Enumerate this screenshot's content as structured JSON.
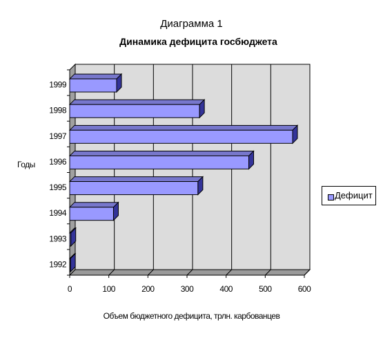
{
  "chart_data": {
    "type": "bar",
    "orientation": "horizontal",
    "title": "Диаграмма 1",
    "subtitle": "Динамика дефицита госбюджета",
    "ylabel": "Годы",
    "xlabel": "Объем бюджетного дефицита, трлн. карбованцев",
    "categories": [
      "1992",
      "1993",
      "1994",
      "1995",
      "1996",
      "1997",
      "1998",
      "1999"
    ],
    "series": [
      {
        "name": "Дефицит",
        "values": [
          2,
          3,
          112,
          328,
          458,
          570,
          332,
          120
        ]
      }
    ],
    "xlim": [
      0,
      600
    ],
    "xticks": [
      "0",
      "100",
      "200",
      "300",
      "400",
      "500",
      "600"
    ],
    "grid": true,
    "legend": "right",
    "colors": {
      "bar": "#9999ff",
      "bar_top": "#7777cc",
      "bar_side": "#333399",
      "plot_bg": "#dcdcdc"
    }
  }
}
